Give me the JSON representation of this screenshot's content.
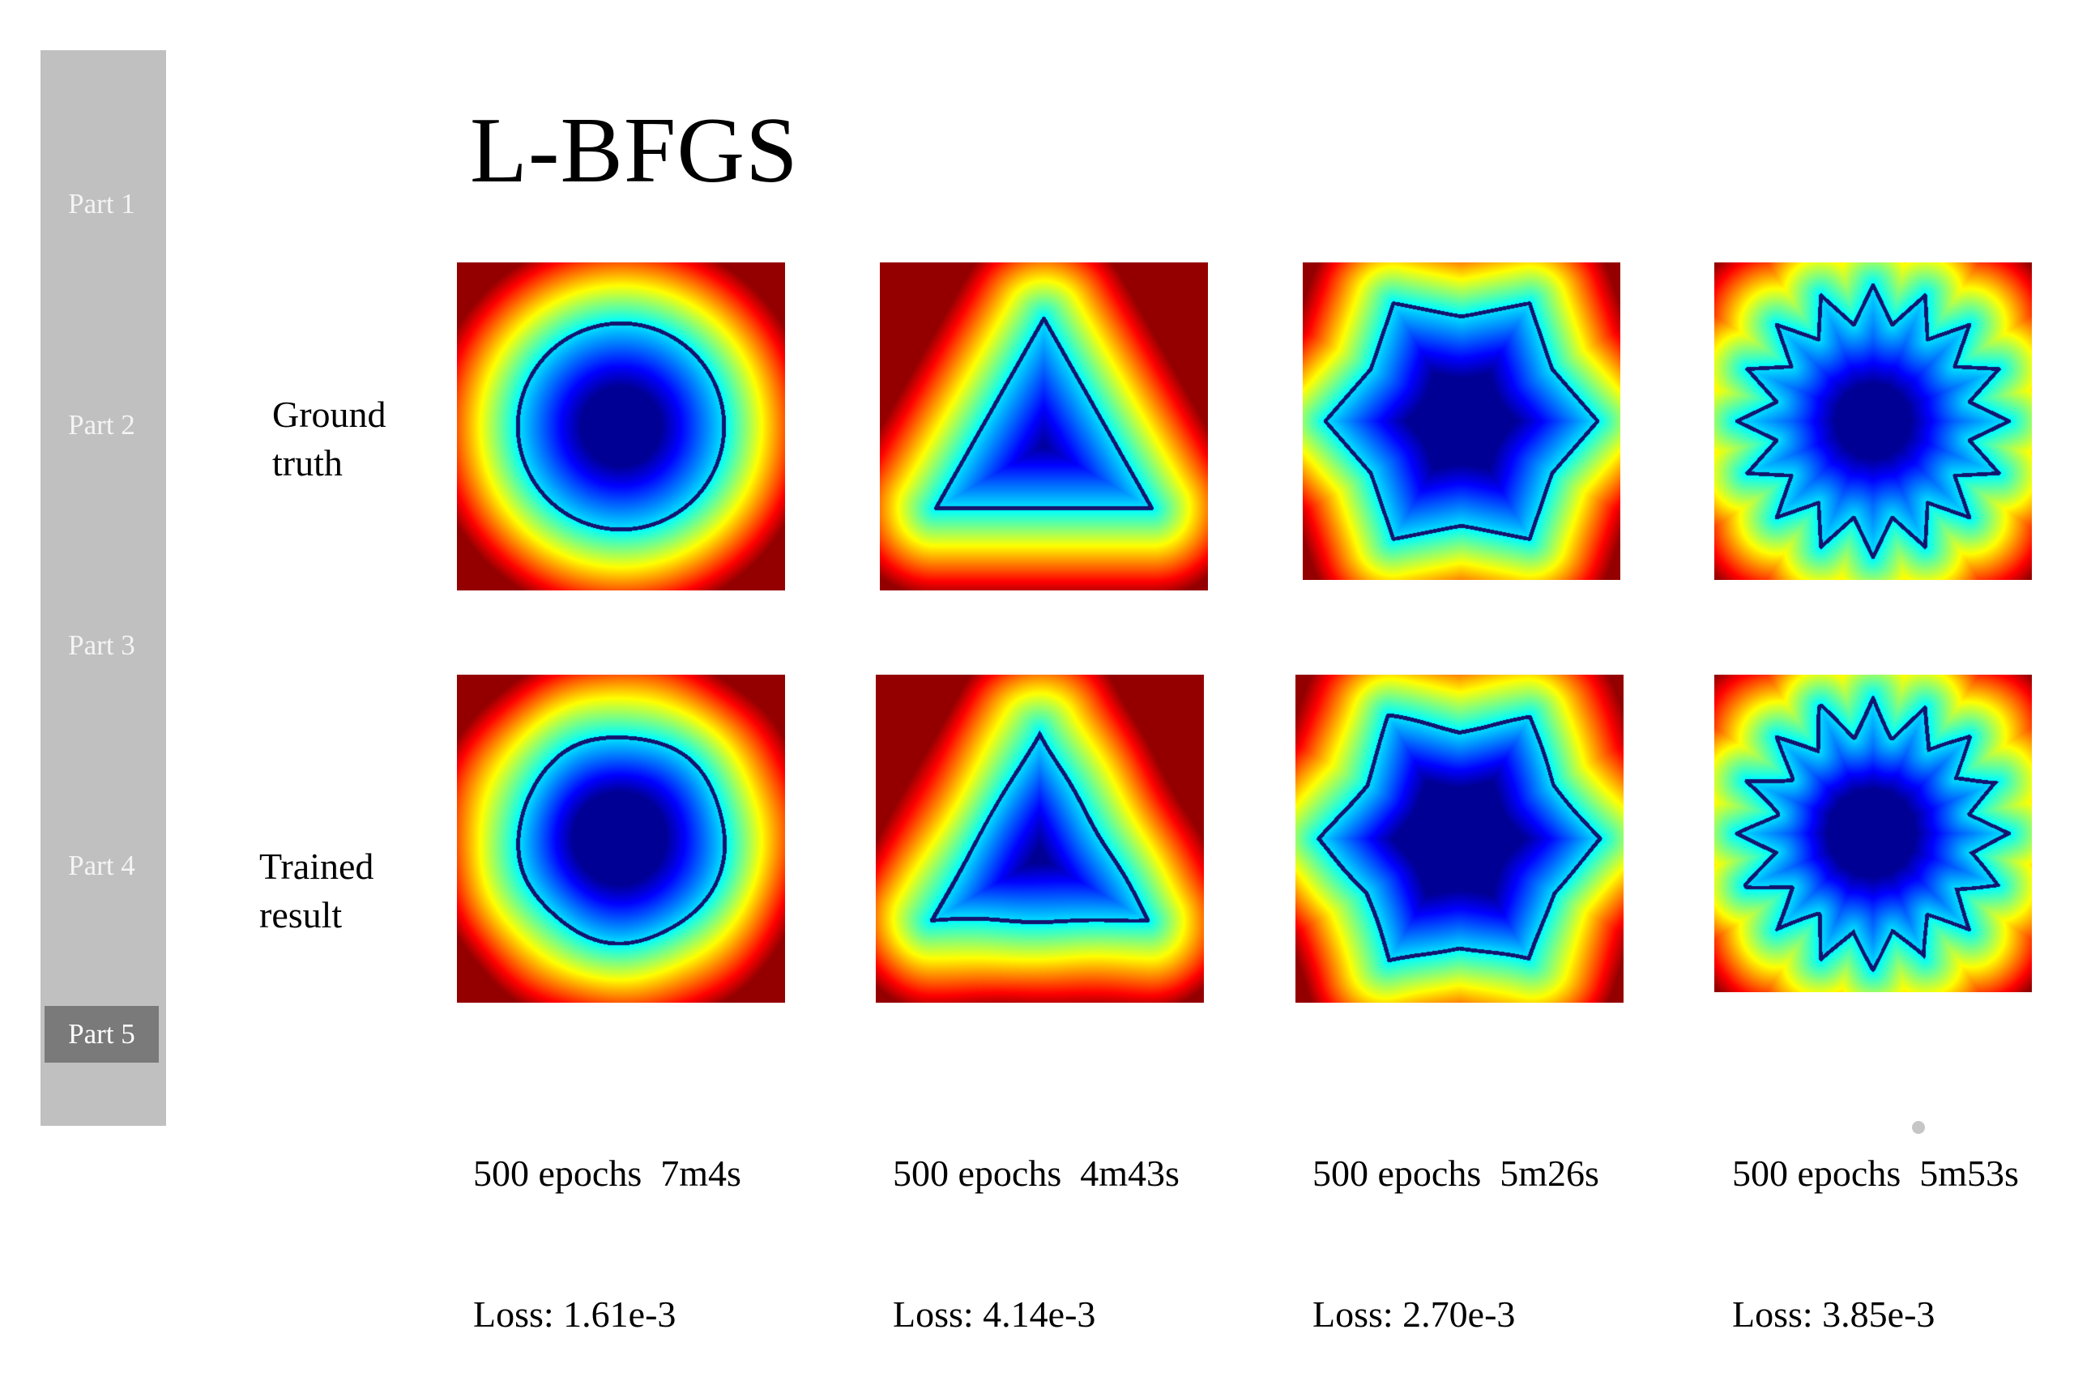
{
  "sidebar": {
    "items": [
      {
        "label": "Part 1",
        "active": false
      },
      {
        "label": "Part 2",
        "active": false
      },
      {
        "label": "Part 3",
        "active": false
      },
      {
        "label": "Part 4",
        "active": false
      },
      {
        "label": "Part 5",
        "active": true
      }
    ]
  },
  "title": "L-BFGS",
  "rows": {
    "ground_truth": [
      "Ground",
      "truth"
    ],
    "trained": [
      "Trained",
      "result"
    ]
  },
  "colormap": "jet",
  "panels": [
    {
      "shape": "circle",
      "caption": {
        "line1": "500 epochs  7m4s",
        "line2": "Loss: 1.61e-3"
      }
    },
    {
      "shape": "triangle",
      "caption": {
        "line1": "500 epochs  4m43s",
        "line2": "Loss: 4.14e-3"
      }
    },
    {
      "shape": "6-point star",
      "caption": {
        "line1": "500 epochs  5m26s",
        "line2": "Loss: 2.70e-3"
      }
    },
    {
      "shape": "16-point star",
      "caption": {
        "line1": "500 epochs  5m53s",
        "line2": "Loss: 3.85e-3"
      }
    }
  ]
}
